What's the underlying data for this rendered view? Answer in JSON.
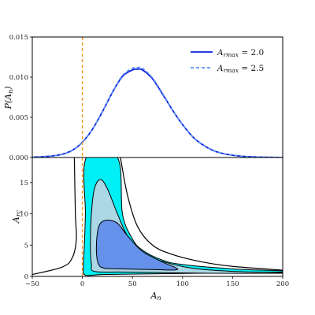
{
  "chart_data": [
    {
      "type": "line",
      "panel": "top",
      "ylabel": "P(A_n)",
      "ylim": [
        0,
        0.015
      ],
      "xlim": [
        -50,
        200
      ],
      "yticks": [
        0.0,
        0.005,
        0.01,
        0.015
      ],
      "ytick_labels": [
        "0.000",
        "0.005",
        "0.010",
        "0.015"
      ],
      "legend": "top-right",
      "series": [
        {
          "name": "A_rmax = 2.0",
          "style": "solid",
          "color": "#0a1ee0",
          "x": [
            -50,
            -40,
            -30,
            -20,
            -10,
            0,
            10,
            20,
            30,
            40,
            50,
            55,
            60,
            70,
            80,
            90,
            100,
            110,
            120,
            130,
            140,
            150,
            160,
            170,
            180,
            190,
            200
          ],
          "y": [
            5e-05,
            0.0001,
            0.0002,
            0.0004,
            0.0009,
            0.0019,
            0.0035,
            0.0057,
            0.0081,
            0.0101,
            0.0109,
            0.011,
            0.0109,
            0.0098,
            0.0079,
            0.0059,
            0.0041,
            0.0026,
            0.0016,
            0.0009,
            0.0005,
            0.00028,
            0.00015,
            8e-05,
            4e-05,
            2e-05,
            1e-05
          ]
        },
        {
          "name": "A_rmax = 2.5",
          "style": "dashed",
          "color": "#5b8ef0",
          "x": [
            -50,
            -40,
            -30,
            -20,
            -10,
            0,
            10,
            20,
            30,
            40,
            50,
            55,
            60,
            70,
            80,
            90,
            100,
            110,
            120,
            130,
            140,
            150,
            160,
            170,
            180,
            190,
            200
          ],
          "y": [
            5e-05,
            0.0001,
            0.0002,
            0.0004,
            0.0009,
            0.0019,
            0.0035,
            0.0057,
            0.0081,
            0.0102,
            0.0111,
            0.0112,
            0.0111,
            0.0099,
            0.008,
            0.0059,
            0.0041,
            0.0026,
            0.0016,
            0.0009,
            0.0005,
            0.00028,
            0.00015,
            8e-05,
            4e-05,
            2e-05,
            1e-05
          ]
        }
      ],
      "vline": {
        "x": 0,
        "color": "#f39a1d",
        "style": "dashed"
      }
    },
    {
      "type": "contour",
      "panel": "bottom",
      "xlabel": "A_n",
      "ylabel": "A_rc",
      "xlim": [
        -50,
        200
      ],
      "ylim": [
        0,
        19
      ],
      "xticks": [
        -50,
        0,
        50,
        100,
        150,
        200
      ],
      "yticks": [
        0,
        5,
        10,
        15
      ],
      "fill_colors": [
        "#00f0f5",
        "#acd8e6",
        "#6591ea"
      ],
      "outer_curve": {
        "color": "#000000",
        "left": [
          [
            -8,
            19
          ],
          [
            -7,
            10
          ],
          [
            -6,
            6
          ],
          [
            -10,
            3
          ],
          [
            -20,
            1.5
          ],
          [
            -50,
            0.3
          ]
        ],
        "right": [
          [
            38,
            19
          ],
          [
            45,
            13
          ],
          [
            55,
            8
          ],
          [
            70,
            5
          ],
          [
            90,
            3.5
          ],
          [
            120,
            2.3
          ],
          [
            150,
            1.6
          ],
          [
            200,
            1.0
          ]
        ]
      },
      "contours": [
        {
          "level": "outer",
          "color": "#00f0f5",
          "points": [
            [
              4,
              19
            ],
            [
              3,
              10
            ],
            [
              2,
              5
            ],
            [
              1,
              1.5
            ],
            [
              3,
              0.2
            ],
            [
              20,
              0.3
            ],
            [
              60,
              0.4
            ],
            [
              120,
              0.5
            ],
            [
              200,
              0.7
            ],
            [
              200,
              0.9
            ],
            [
              150,
              1.2
            ],
            [
              100,
              1.9
            ],
            [
              80,
              2.6
            ],
            [
              60,
              4.2
            ],
            [
              50,
              6
            ],
            [
              40,
              10
            ],
            [
              35,
              19
            ]
          ]
        },
        {
          "level": "middle",
          "color": "#acd8e6",
          "points": [
            [
              12,
              14
            ],
            [
              9,
              10
            ],
            [
              8,
              5
            ],
            [
              9,
              2
            ],
            [
              12,
              0.8
            ],
            [
              40,
              0.7
            ],
            [
              80,
              0.6
            ],
            [
              130,
              0.5
            ],
            [
              200,
              0.5
            ],
            [
              200,
              0.6
            ],
            [
              150,
              0.8
            ],
            [
              110,
              1.3
            ],
            [
              80,
              2.4
            ],
            [
              60,
              3.8
            ],
            [
              45,
              6.5
            ],
            [
              35,
              10
            ],
            [
              25,
              14
            ],
            [
              18,
              15.5
            ]
          ]
        },
        {
          "level": "inner",
          "color": "#6591ea",
          "points": [
            [
              15,
              7
            ],
            [
              14,
              4
            ],
            [
              16,
              2
            ],
            [
              22,
              1.3
            ],
            [
              40,
              1.2
            ],
            [
              70,
              1.1
            ],
            [
              95,
              1.1
            ],
            [
              80,
              2.3
            ],
            [
              60,
              4
            ],
            [
              45,
              6.5
            ],
            [
              35,
              8.5
            ],
            [
              25,
              9
            ],
            [
              18,
              8.5
            ]
          ]
        }
      ],
      "vline": {
        "x": 0,
        "color": "#f39a1d",
        "style": "dashed"
      }
    }
  ],
  "text": {
    "top_ylabel": "P(A",
    "top_ylabel_sub": "n",
    "top_ylabel_end": ")",
    "bottom_ylabel": "A",
    "bottom_ylabel_sub": "rc",
    "xlabel": "A",
    "xlabel_sub": "n",
    "legend_1_main": "A",
    "legend_1_sub": "rmax",
    "legend_1_value": " = 2.0",
    "legend_2_main": "A",
    "legend_2_sub": "rmax",
    "legend_2_value": " = 2.5"
  }
}
